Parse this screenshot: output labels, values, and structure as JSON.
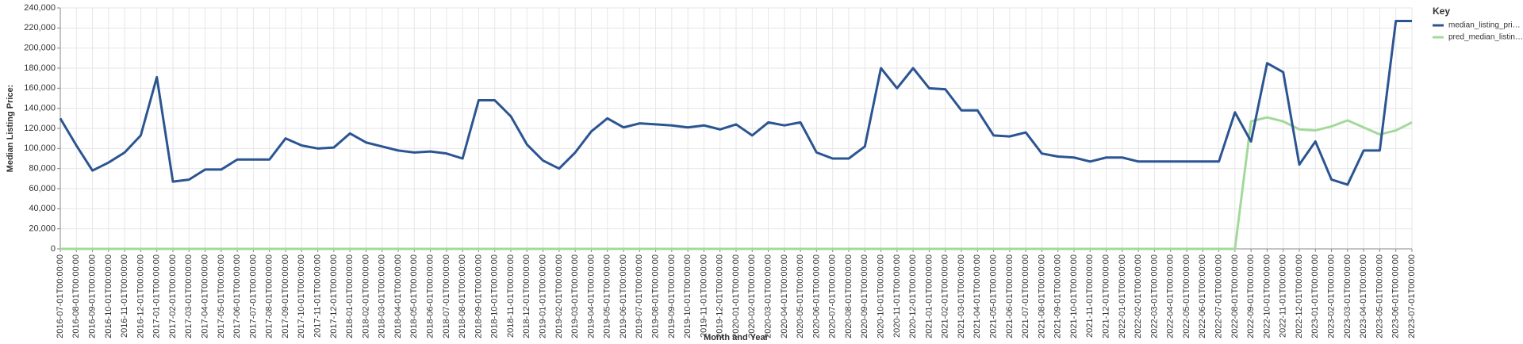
{
  "chart_data": {
    "type": "line",
    "x_label": "Month and Year",
    "y_label": "Median Listing Price:",
    "legend_title": "Key",
    "legend_position": "right",
    "grid": true,
    "categories": [
      "2016-07-01T00:00:00",
      "2016-08-01T00:00:00",
      "2016-09-01T00:00:00",
      "2016-10-01T00:00:00",
      "2016-11-01T00:00:00",
      "2016-12-01T00:00:00",
      "2017-01-01T00:00:00",
      "2017-02-01T00:00:00",
      "2017-03-01T00:00:00",
      "2017-04-01T00:00:00",
      "2017-05-01T00:00:00",
      "2017-06-01T00:00:00",
      "2017-07-01T00:00:00",
      "2017-08-01T00:00:00",
      "2017-09-01T00:00:00",
      "2017-10-01T00:00:00",
      "2017-11-01T00:00:00",
      "2017-12-01T00:00:00",
      "2018-01-01T00:00:00",
      "2018-02-01T00:00:00",
      "2018-03-01T00:00:00",
      "2018-04-01T00:00:00",
      "2018-05-01T00:00:00",
      "2018-06-01T00:00:00",
      "2018-07-01T00:00:00",
      "2018-08-01T00:00:00",
      "2018-09-01T00:00:00",
      "2018-10-01T00:00:00",
      "2018-11-01T00:00:00",
      "2018-12-01T00:00:00",
      "2019-01-01T00:00:00",
      "2019-02-01T00:00:00",
      "2019-03-01T00:00:00",
      "2019-04-01T00:00:00",
      "2019-05-01T00:00:00",
      "2019-06-01T00:00:00",
      "2019-07-01T00:00:00",
      "2019-08-01T00:00:00",
      "2019-09-01T00:00:00",
      "2019-10-01T00:00:00",
      "2019-11-01T00:00:00",
      "2019-12-01T00:00:00",
      "2020-01-01T00:00:00",
      "2020-02-01T00:00:00",
      "2020-03-01T00:00:00",
      "2020-04-01T00:00:00",
      "2020-05-01T00:00:00",
      "2020-06-01T00:00:00",
      "2020-07-01T00:00:00",
      "2020-08-01T00:00:00",
      "2020-09-01T00:00:00",
      "2020-10-01T00:00:00",
      "2020-11-01T00:00:00",
      "2020-12-01T00:00:00",
      "2021-01-01T00:00:00",
      "2021-02-01T00:00:00",
      "2021-03-01T00:00:00",
      "2021-04-01T00:00:00",
      "2021-05-01T00:00:00",
      "2021-06-01T00:00:00",
      "2021-07-01T00:00:00",
      "2021-08-01T00:00:00",
      "2021-09-01T00:00:00",
      "2021-10-01T00:00:00",
      "2021-11-01T00:00:00",
      "2021-12-01T00:00:00",
      "2022-01-01T00:00:00",
      "2022-02-01T00:00:00",
      "2022-03-01T00:00:00",
      "2022-04-01T00:00:00",
      "2022-05-01T00:00:00",
      "2022-06-01T00:00:00",
      "2022-07-01T00:00:00",
      "2022-08-01T00:00:00",
      "2022-09-01T00:00:00",
      "2022-10-01T00:00:00",
      "2022-11-01T00:00:00",
      "2022-12-01T00:00:00",
      "2023-01-01T00:00:00",
      "2023-02-01T00:00:00",
      "2023-03-01T00:00:00",
      "2023-04-01T00:00:00",
      "2023-05-01T00:00:00",
      "2023-06-01T00:00:00",
      "2023-07-01T00:00:00"
    ],
    "series": [
      {
        "name": "median_listing_pri…",
        "color": "#2b5592",
        "values": [
          130000,
          103000,
          78000,
          86000,
          96000,
          113000,
          171000,
          67000,
          69000,
          79000,
          79000,
          89000,
          89000,
          89000,
          110000,
          103000,
          100000,
          101000,
          115000,
          106000,
          102000,
          98000,
          96000,
          97000,
          95000,
          90000,
          148000,
          148000,
          132000,
          104000,
          88000,
          80000,
          96000,
          117000,
          130000,
          121000,
          125000,
          124000,
          123000,
          121000,
          123000,
          119000,
          124000,
          113000,
          126000,
          123000,
          126000,
          96000,
          90000,
          90000,
          102000,
          180000,
          160000,
          180000,
          160000,
          159000,
          138000,
          138000,
          113000,
          112000,
          116000,
          95000,
          92000,
          91000,
          87000,
          91000,
          91000,
          87000,
          87000,
          87000,
          87000,
          87000,
          87000,
          136000,
          107000,
          185000,
          176000,
          84000,
          107000,
          69000,
          64000,
          98000,
          98000,
          227000,
          227000
        ]
      },
      {
        "name": "pred_median_listin…",
        "color": "#a3d99b",
        "values": [
          0,
          0,
          0,
          0,
          0,
          0,
          0,
          0,
          0,
          0,
          0,
          0,
          0,
          0,
          0,
          0,
          0,
          0,
          0,
          0,
          0,
          0,
          0,
          0,
          0,
          0,
          0,
          0,
          0,
          0,
          0,
          0,
          0,
          0,
          0,
          0,
          0,
          0,
          0,
          0,
          0,
          0,
          0,
          0,
          0,
          0,
          0,
          0,
          0,
          0,
          0,
          0,
          0,
          0,
          0,
          0,
          0,
          0,
          0,
          0,
          0,
          0,
          0,
          0,
          0,
          0,
          0,
          0,
          0,
          0,
          0,
          0,
          0,
          0,
          127000,
          131000,
          127000,
          119000,
          118000,
          122000,
          128000,
          121000,
          114000,
          118000,
          126000
        ]
      }
    ],
    "ylim": [
      0,
      240000
    ],
    "yticks": [
      0,
      {
        "value": 20000,
        "label": "20,000"
      },
      {
        "value": 40000,
        "label": "40,000"
      },
      {
        "value": 60000,
        "label": "60,000"
      },
      {
        "value": 80000,
        "label": "80,000"
      },
      {
        "value": 100000,
        "label": "100,000"
      },
      {
        "value": 120000,
        "label": "120,000"
      },
      {
        "value": 140000,
        "label": "140,000"
      },
      {
        "value": 160000,
        "label": "160,000"
      },
      {
        "value": 180000,
        "label": "180,000"
      },
      {
        "value": 200000,
        "label": "200,000"
      },
      {
        "value": 220000,
        "label": "220,000"
      },
      {
        "value": 240000,
        "label": "240,000"
      }
    ]
  }
}
